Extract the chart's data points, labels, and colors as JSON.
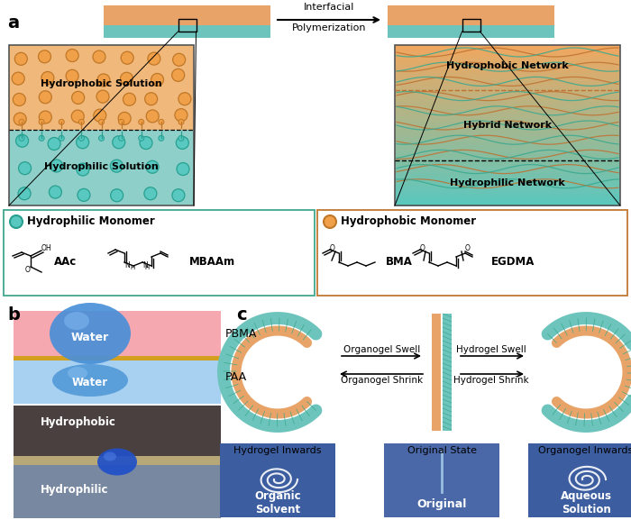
{
  "fig_width": 7.0,
  "fig_height": 5.77,
  "dpi": 100,
  "bg_color": "#ffffff",
  "orange": "#E8A468",
  "teal": "#6DC4BC",
  "orange_light": "#F0B87A",
  "teal_light": "#8ECFCA",
  "panel_a": "a",
  "panel_b": "b",
  "panel_c": "c",
  "interfacial": "Interfacial",
  "polymerization": "Polymerization",
  "hydrophobic_solution": "Hydrophobic Solution",
  "hydrophilic_solution": "Hydrophilic Solution",
  "hydrophobic_network": "Hydrophobic Network",
  "hybrid_network": "Hybrid Network",
  "hydrophilic_network": "Hydrophilic Network",
  "hydrophilic_monomer": "Hydrophilic Monomer",
  "hydrophobic_monomer": "Hydrophobic Monomer",
  "aac": "AAc",
  "mbaam": "MBAAm",
  "bma": "BMA",
  "egdma": "EGDMA",
  "pbma": "PBMA",
  "paa": "PAA",
  "water": "Water",
  "hydrophobic_lbl": "Hydrophobic",
  "hydrophilic_lbl": "Hydrophilic",
  "organogel_swell": "Organogel Swell",
  "organogel_shrink": "Organogel Shrink",
  "hydrogel_swell": "Hydrogel Swell",
  "hydrogel_shrink": "Hydrogel Shrink",
  "hydrogel_inwards": "Hydrogel Inwards",
  "original_state": "Original State",
  "organogel_inwards": "Organogel Inwards",
  "organic_solvent": "Organic\nSolvent",
  "original": "Original",
  "aqueous_solution": "Aqueous\nSolution",
  "pink_bg": "#F5A8B0",
  "lblue_bg": "#A8D0F0",
  "photo_blue": "#3C5EA0",
  "photo_blue2": "#4A68A8",
  "dark_bg": "#3A3230",
  "gray_bg": "#8090A0"
}
